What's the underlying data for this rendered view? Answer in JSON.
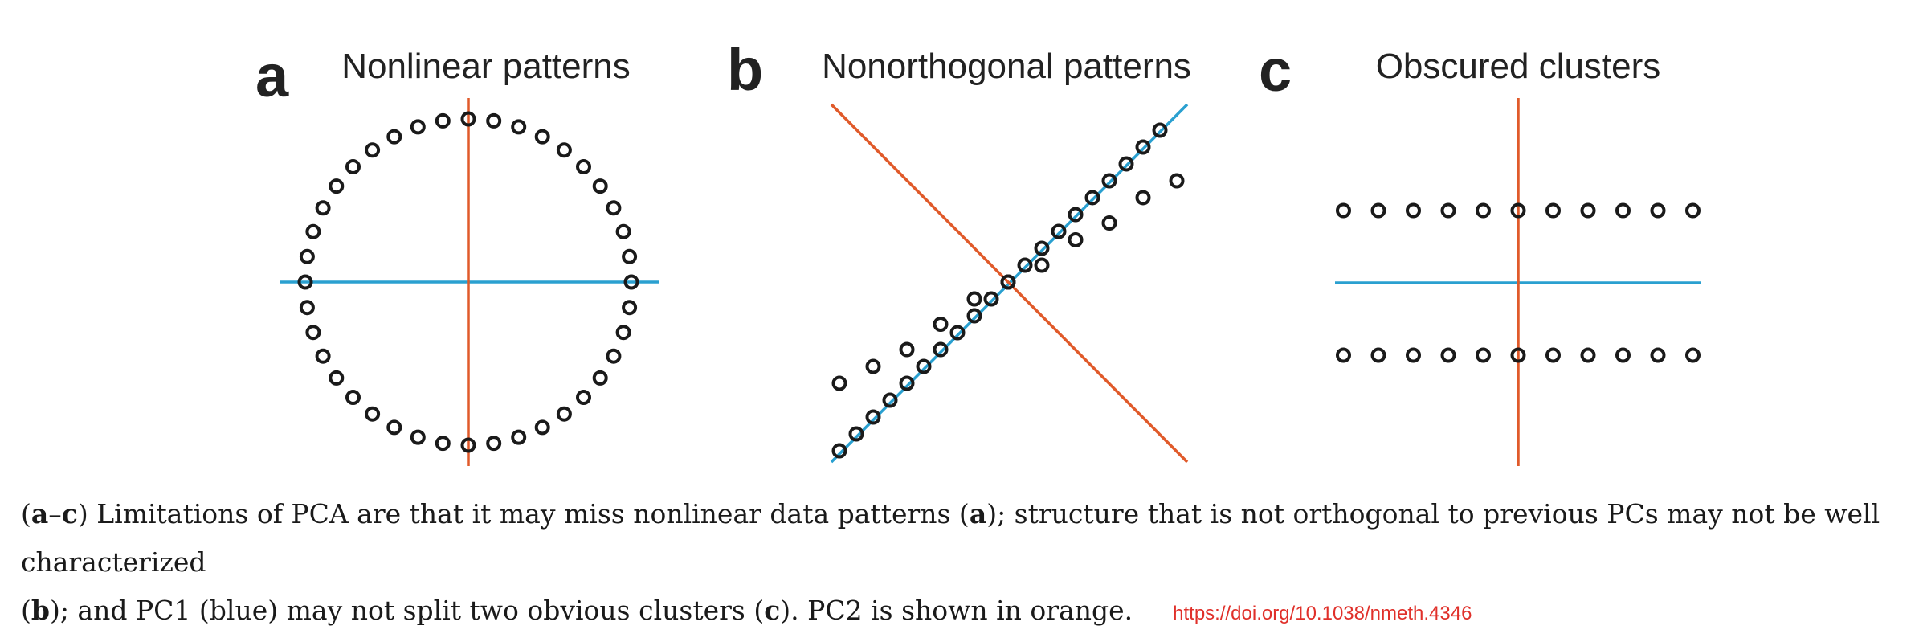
{
  "panels": [
    {
      "letter": "a",
      "title": "Nonlinear patterns"
    },
    {
      "letter": "b",
      "title": "Nonorthogonal patterns"
    },
    {
      "letter": "c",
      "title": "Obscured clusters"
    }
  ],
  "caption": {
    "open1": "(",
    "range_start": "a",
    "range_dash": "–",
    "range_end": "c",
    "part1": ") Limitations of PCA are that it may miss nonlinear data patterns (",
    "ref_a": "a",
    "part2": "); structure that is not orthogonal to previous PCs may not be well characterized",
    "open2": "(",
    "ref_b": "b",
    "part3": "); and PC1 (blue) may not split two obvious clusters (",
    "ref_c": "c",
    "part4": "). PC2 is shown in orange.",
    "doi": "https://doi.org/10.1038/nmeth.4346"
  },
  "colors": {
    "pc1": "#2aa0d0",
    "pc2": "#e05a2a",
    "points": "#1a1a1a"
  },
  "chart_data": [
    {
      "type": "scatter",
      "title": "Nonlinear patterns",
      "shape": "circle",
      "n_points": 40,
      "points": [
        [
          1,
          0
        ],
        [
          0.988,
          0.156
        ],
        [
          0.951,
          0.309
        ],
        [
          0.891,
          0.454
        ],
        [
          0.809,
          0.588
        ],
        [
          0.707,
          0.707
        ],
        [
          0.588,
          0.809
        ],
        [
          0.454,
          0.891
        ],
        [
          0.309,
          0.951
        ],
        [
          0.156,
          0.988
        ],
        [
          0,
          1
        ],
        [
          -0.156,
          0.988
        ],
        [
          -0.309,
          0.951
        ],
        [
          -0.454,
          0.891
        ],
        [
          -0.588,
          0.809
        ],
        [
          -0.707,
          0.707
        ],
        [
          -0.809,
          0.588
        ],
        [
          -0.891,
          0.454
        ],
        [
          -0.951,
          0.309
        ],
        [
          -0.988,
          0.156
        ],
        [
          -1,
          0
        ],
        [
          -0.988,
          -0.156
        ],
        [
          -0.951,
          -0.309
        ],
        [
          -0.891,
          -0.454
        ],
        [
          -0.809,
          -0.588
        ],
        [
          -0.707,
          -0.707
        ],
        [
          -0.588,
          -0.809
        ],
        [
          -0.454,
          -0.891
        ],
        [
          -0.309,
          -0.951
        ],
        [
          -0.156,
          -0.988
        ],
        [
          0,
          -1
        ],
        [
          0.156,
          -0.988
        ],
        [
          0.309,
          -0.951
        ],
        [
          0.454,
          -0.891
        ],
        [
          0.588,
          -0.809
        ],
        [
          0.707,
          -0.707
        ],
        [
          0.809,
          -0.588
        ],
        [
          0.891,
          -0.454
        ],
        [
          0.951,
          -0.309
        ],
        [
          0.988,
          -0.156
        ]
      ],
      "pc1": {
        "direction": "horizontal"
      },
      "pc2": {
        "direction": "vertical"
      }
    },
    {
      "type": "scatter",
      "title": "Nonorthogonal patterns",
      "series": [
        {
          "points": [
            [
              -1.0,
              -1.0
            ],
            [
              -0.9,
              -0.9
            ],
            [
              -0.8,
              -0.8
            ],
            [
              -0.7,
              -0.7
            ],
            [
              -0.6,
              -0.6
            ],
            [
              -0.5,
              -0.5
            ],
            [
              -0.4,
              -0.4
            ],
            [
              -0.3,
              -0.3
            ],
            [
              -0.2,
              -0.2
            ],
            [
              -0.1,
              -0.1
            ],
            [
              0,
              0
            ],
            [
              0.1,
              0.1
            ],
            [
              0.2,
              0.2
            ],
            [
              0.3,
              0.3
            ],
            [
              0.4,
              0.4
            ],
            [
              0.5,
              0.5
            ],
            [
              0.6,
              0.6
            ],
            [
              0.7,
              0.7
            ],
            [
              0.8,
              0.8
            ],
            [
              0.9,
              0.9
            ]
          ]
        },
        {
          "points": [
            [
              -1.0,
              -0.6
            ],
            [
              -0.8,
              -0.5
            ],
            [
              -0.6,
              -0.4
            ],
            [
              -0.4,
              -0.25
            ],
            [
              -0.2,
              -0.1
            ],
            [
              0,
              0
            ],
            [
              0.2,
              0.1
            ],
            [
              0.4,
              0.25
            ],
            [
              0.6,
              0.35
            ],
            [
              0.8,
              0.5
            ],
            [
              1.0,
              0.6
            ]
          ]
        }
      ],
      "pc1": {
        "slope": 1
      },
      "pc2": {
        "slope": -1
      }
    },
    {
      "type": "scatter",
      "title": "Obscured clusters",
      "series": [
        {
          "points": [
            [
              -5,
              1
            ],
            [
              -4,
              1
            ],
            [
              -3,
              1
            ],
            [
              -2,
              1
            ],
            [
              -1,
              1
            ],
            [
              0,
              1
            ],
            [
              1,
              1
            ],
            [
              2,
              1
            ],
            [
              3,
              1
            ],
            [
              4,
              1
            ],
            [
              5,
              1
            ]
          ]
        },
        {
          "points": [
            [
              -5,
              -1
            ],
            [
              -4,
              -1
            ],
            [
              -3,
              -1
            ],
            [
              -2,
              -1
            ],
            [
              -1,
              -1
            ],
            [
              0,
              -1
            ],
            [
              1,
              -1
            ],
            [
              2,
              -1
            ],
            [
              3,
              -1
            ],
            [
              4,
              -1
            ],
            [
              5,
              -1
            ]
          ]
        }
      ],
      "pc1": {
        "direction": "horizontal"
      },
      "pc2": {
        "direction": "vertical"
      }
    }
  ]
}
